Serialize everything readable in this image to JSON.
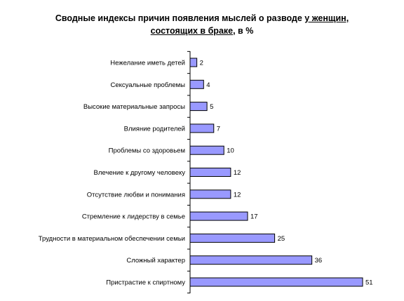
{
  "chart_data": {
    "type": "bar",
    "orientation": "horizontal",
    "title_parts": [
      {
        "text": "Сводные индексы причин появления мыслей о разводе ",
        "underline": false
      },
      {
        "text": "у женщин,",
        "underline": true
      },
      {
        "br": true
      },
      {
        "text": "состоящих в браке",
        "underline": true
      },
      {
        "text": ", в %",
        "underline": false
      }
    ],
    "categories": [
      "Нежелание иметь детей",
      "Сексуальные проблемы",
      "Высокие материальные запросы",
      "Влияние родителей",
      "Проблемы со здоровьем",
      "Влечение к другому человеку",
      "Отсутствие любви и понимания",
      "Стремление к лидерству в семье",
      "Трудности в материальном обеспечении семьи",
      "Сложный  характер",
      "Пристрастие к спиртному"
    ],
    "values": [
      2,
      4,
      5,
      7,
      10,
      12,
      12,
      17,
      25,
      36,
      51
    ],
    "xlim": [
      0,
      51
    ],
    "grid": false,
    "legend": "none",
    "colors": {
      "bar_fill": "#9999ff",
      "bar_stroke": "#000000"
    }
  }
}
